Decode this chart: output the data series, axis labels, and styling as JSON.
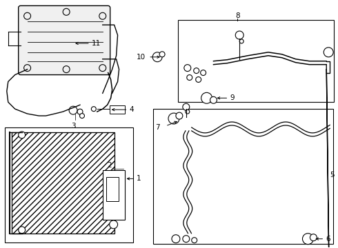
{
  "background_color": "#ffffff",
  "line_color": "#000000",
  "text_color": "#000000",
  "fig_width": 4.9,
  "fig_height": 3.6,
  "dpi": 100,
  "boxes": {
    "condenser": [
      0.04,
      0.05,
      1.96,
      1.75
    ],
    "pipe_lower": [
      2.22,
      0.05,
      4.88,
      2.52
    ],
    "hose_upper": [
      2.58,
      2.62,
      4.88,
      3.3
    ]
  }
}
